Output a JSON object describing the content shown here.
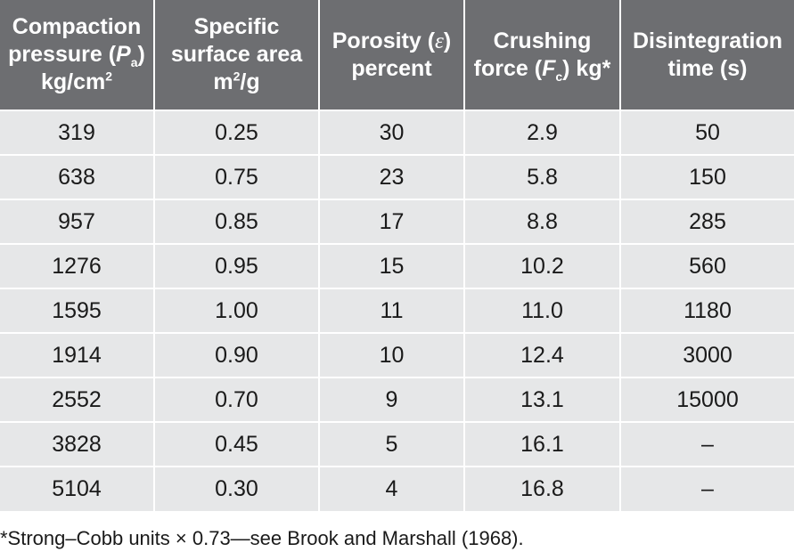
{
  "headers": [
    {
      "l1": "Compaction",
      "l2a": "pressure (",
      "l2b": "P",
      "l2c": "a",
      "l2d": ")",
      "l3a": "kg/cm",
      "l3b": "2"
    },
    {
      "l1": "Specific",
      "l2": "surface area",
      "l3a": "m",
      "l3b": "2",
      "l3c": "/g"
    },
    {
      "l1a": "Porosity (",
      "l1b": "ε",
      "l1c": ")",
      "l2": "percent"
    },
    {
      "l1": "Crushing",
      "l2a": "force (",
      "l2b": "F",
      "l2c": "c",
      "l2d": ") kg*"
    },
    {
      "l1": "Disintegration",
      "l2": "time (s)"
    }
  ],
  "rows": [
    [
      "319",
      "0.25",
      "30",
      "2.9",
      "50"
    ],
    [
      "638",
      "0.75",
      "23",
      "5.8",
      "150"
    ],
    [
      "957",
      "0.85",
      "17",
      "8.8",
      "285"
    ],
    [
      "1276",
      "0.95",
      "15",
      "10.2",
      "560"
    ],
    [
      "1595",
      "1.00",
      "11",
      "11.0",
      "1180"
    ],
    [
      "1914",
      "0.90",
      "10",
      "12.4",
      "3000"
    ],
    [
      "2552",
      "0.70",
      "9",
      "13.1",
      "15000"
    ],
    [
      "3828",
      "0.45",
      "5",
      "16.1",
      "–"
    ],
    [
      "5104",
      "0.30",
      "4",
      "16.8",
      "–"
    ]
  ],
  "footnote": "*Strong–Cobb units × 0.73—see Brook and Marshall (1968)."
}
